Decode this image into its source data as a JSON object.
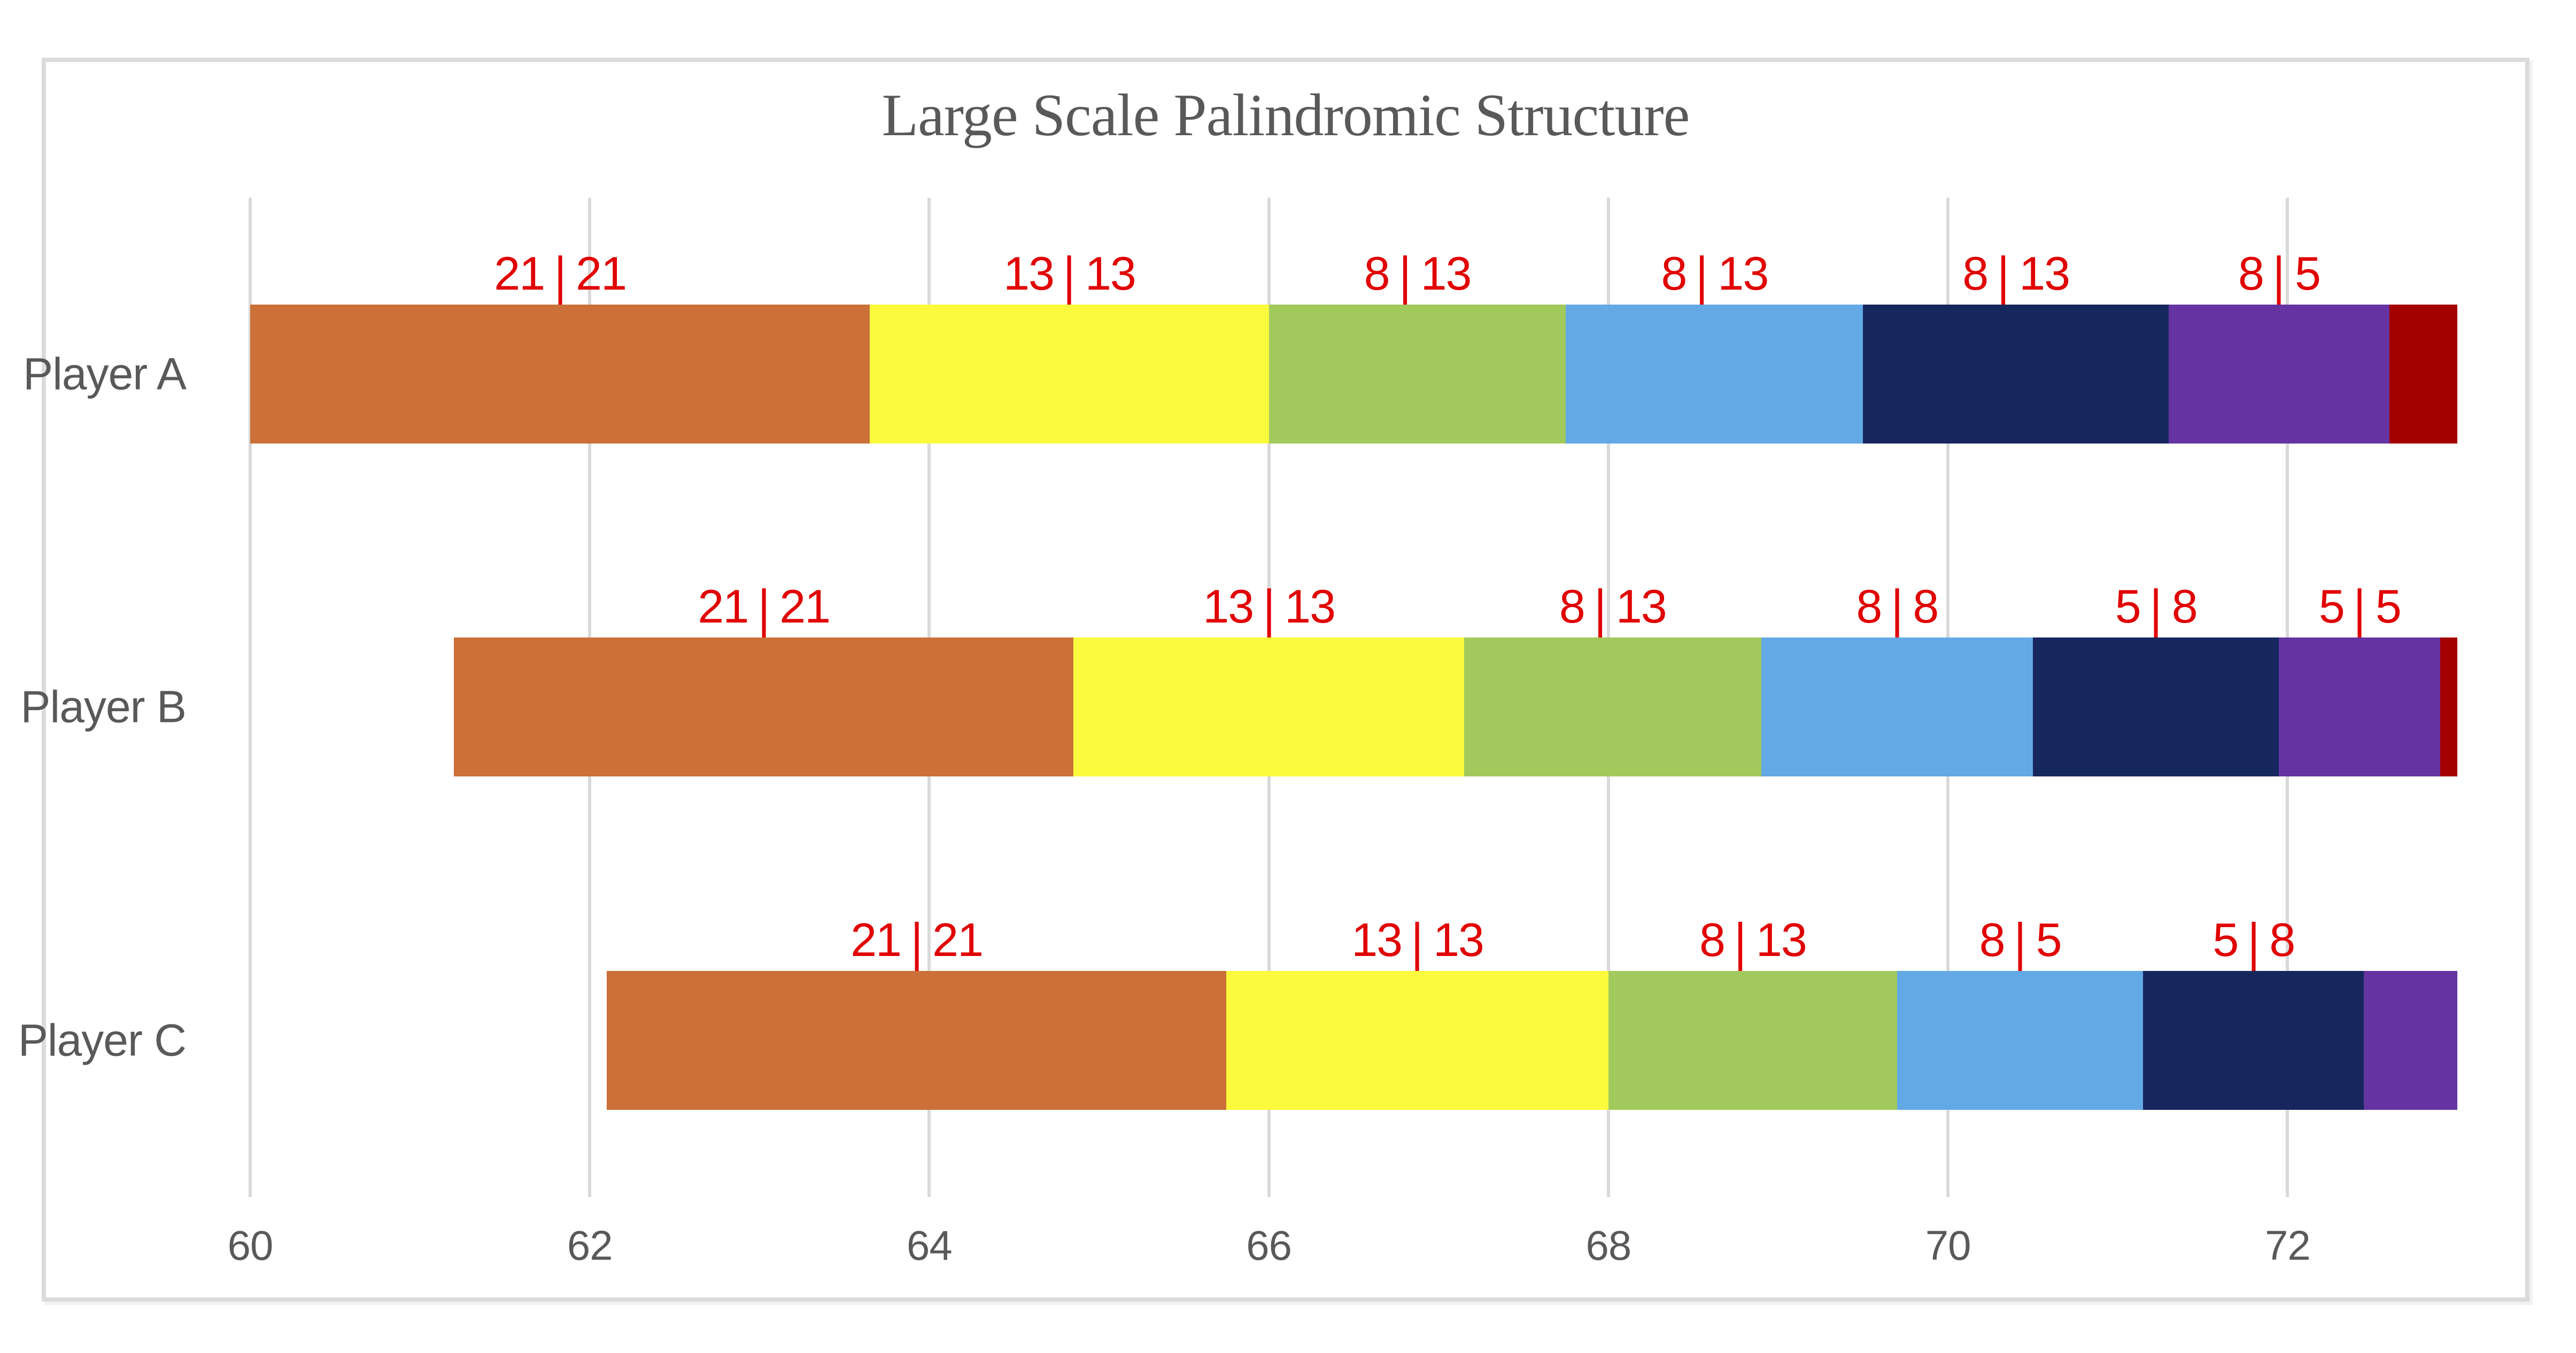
{
  "style": {
    "title_color": "#595959",
    "axis_text_color": "#595959",
    "category_text_color": "#595959",
    "gridline_color": "#D9D9D9",
    "frame_border_color": "#DBDBDB",
    "data_label_color": "#E10000",
    "background_color": "#FFFFFF"
  },
  "chart_data": {
    "type": "bar",
    "orientation": "horizontal_stacked",
    "title": "Large Scale Palindromic Structure",
    "categories": [
      "Player A",
      "Player B",
      "Player C"
    ],
    "xlim": [
      60,
      73
    ],
    "x_render_max": 73.4,
    "x_ticks": [
      "60",
      "62",
      "64",
      "66",
      "68",
      "70",
      "72"
    ],
    "grid": "vertical",
    "legend": "none",
    "segment_colors": {
      "orange": "#CA7038",
      "yellow": "#FBFA3D",
      "green": "#A2C95C",
      "blue": "#63A9E5",
      "navy": "#16275E",
      "purple": "#6534A2",
      "dark_red": "#A40000"
    },
    "rows": [
      {
        "category": "Player A",
        "segments": [
          {
            "start": 60.0,
            "end": 63.65,
            "color": "orange",
            "label": "21 | 21"
          },
          {
            "start": 63.65,
            "end": 66.0,
            "color": "yellow",
            "label": "13 | 13"
          },
          {
            "start": 66.0,
            "end": 67.75,
            "color": "green",
            "label": "8 | 13"
          },
          {
            "start": 67.75,
            "end": 69.5,
            "color": "blue",
            "label": "8 | 13"
          },
          {
            "start": 69.5,
            "end": 71.3,
            "color": "navy",
            "label": "8 | 13"
          },
          {
            "start": 71.3,
            "end": 72.6,
            "color": "purple",
            "label": "8 | 5"
          },
          {
            "start": 72.6,
            "end": 73.0,
            "color": "dark_red",
            "label": ""
          }
        ]
      },
      {
        "category": "Player B",
        "segments": [
          {
            "start": 61.2,
            "end": 64.85,
            "color": "orange",
            "label": "21 | 21"
          },
          {
            "start": 64.85,
            "end": 67.15,
            "color": "yellow",
            "label": "13 | 13"
          },
          {
            "start": 67.15,
            "end": 68.9,
            "color": "green",
            "label": "8 | 13"
          },
          {
            "start": 68.9,
            "end": 70.5,
            "color": "blue",
            "label": "8 | 8"
          },
          {
            "start": 70.5,
            "end": 71.95,
            "color": "navy",
            "label": "5 | 8"
          },
          {
            "start": 71.95,
            "end": 72.9,
            "color": "purple",
            "label": "5 | 5"
          },
          {
            "start": 72.9,
            "end": 73.0,
            "color": "dark_red",
            "label": ""
          }
        ]
      },
      {
        "category": "Player C",
        "segments": [
          {
            "start": 62.1,
            "end": 65.75,
            "color": "orange",
            "label": "21 | 21"
          },
          {
            "start": 65.75,
            "end": 68.0,
            "color": "yellow",
            "label": "13 | 13"
          },
          {
            "start": 68.0,
            "end": 69.7,
            "color": "green",
            "label": "8 | 13"
          },
          {
            "start": 69.7,
            "end": 71.15,
            "color": "blue",
            "label": "8 | 5"
          },
          {
            "start": 71.15,
            "end": 72.45,
            "color": "navy",
            "label": "5 | 8"
          },
          {
            "start": 72.45,
            "end": 73.0,
            "color": "purple",
            "label": ""
          }
        ]
      }
    ]
  }
}
